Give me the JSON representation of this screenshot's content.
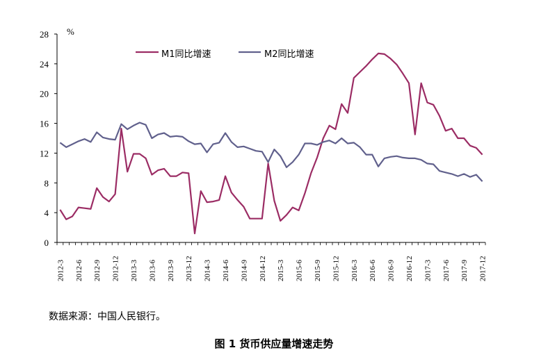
{
  "chart_data": {
    "type": "line",
    "unit_label": "%",
    "ylim": [
      0,
      28
    ],
    "yticks": [
      0,
      4,
      8,
      12,
      16,
      20,
      24,
      28
    ],
    "x": [
      "2012-3",
      "2012-4",
      "2012-5",
      "2012-6",
      "2012-7",
      "2012-8",
      "2012-9",
      "2012-10",
      "2012-11",
      "2012-12",
      "2013-1",
      "2013-2",
      "2013-3",
      "2013-4",
      "2013-5",
      "2013-6",
      "2013-7",
      "2013-8",
      "2013-9",
      "2013-10",
      "2013-11",
      "2013-12",
      "2014-1",
      "2014-2",
      "2014-3",
      "2014-4",
      "2014-5",
      "2014-6",
      "2014-7",
      "2014-8",
      "2014-9",
      "2014-10",
      "2014-11",
      "2014-12",
      "2015-1",
      "2015-2",
      "2015-3",
      "2015-4",
      "2015-5",
      "2015-6",
      "2015-7",
      "2015-8",
      "2015-9",
      "2015-10",
      "2015-11",
      "2015-12",
      "2016-1",
      "2016-2",
      "2016-3",
      "2016-4",
      "2016-5",
      "2016-6",
      "2016-7",
      "2016-8",
      "2016-9",
      "2016-10",
      "2016-11",
      "2016-12",
      "2017-1",
      "2017-2",
      "2017-3",
      "2017-4",
      "2017-5",
      "2017-6",
      "2017-7",
      "2017-8",
      "2017-9",
      "2017-10",
      "2017-11",
      "2017-12"
    ],
    "xtick_labels": [
      "2012-3",
      "2012-6",
      "2012-9",
      "2012-12",
      "2013-3",
      "2013-6",
      "2013-9",
      "2013-12",
      "2014-3",
      "2014-6",
      "2014-9",
      "2014-12",
      "2015-3",
      "2015-6",
      "2015-9",
      "2015-12",
      "2016-3",
      "2016-6",
      "2016-9",
      "2016-12",
      "2017-3",
      "2017-6",
      "2017-9",
      "2017-12"
    ],
    "series": [
      {
        "name": "M1同比增速",
        "color": "#9b2c64",
        "values": [
          4.4,
          3.1,
          3.5,
          4.7,
          4.6,
          4.5,
          7.3,
          6.1,
          5.5,
          6.5,
          15.3,
          9.5,
          11.9,
          11.9,
          11.3,
          9.1,
          9.7,
          9.9,
          8.9,
          8.9,
          9.4,
          9.3,
          1.2,
          6.9,
          5.4,
          5.5,
          5.7,
          8.9,
          6.7,
          5.7,
          4.8,
          3.2,
          3.2,
          3.2,
          10.6,
          5.6,
          2.9,
          3.7,
          4.7,
          4.3,
          6.6,
          9.3,
          11.4,
          14.0,
          15.7,
          15.2,
          18.6,
          17.4,
          22.1,
          22.9,
          23.7,
          24.6,
          25.4,
          25.3,
          24.7,
          23.9,
          22.7,
          21.4,
          14.5,
          21.4,
          18.8,
          18.5,
          17.0,
          15.0,
          15.3,
          14.0,
          14.0,
          13.0,
          12.7,
          11.8
        ]
      },
      {
        "name": "M2同比增速",
        "color": "#60608c",
        "values": [
          13.4,
          12.8,
          13.2,
          13.6,
          13.9,
          13.5,
          14.8,
          14.1,
          13.9,
          13.8,
          15.9,
          15.2,
          15.7,
          16.1,
          15.8,
          14.0,
          14.5,
          14.7,
          14.2,
          14.3,
          14.2,
          13.6,
          13.2,
          13.3,
          12.1,
          13.2,
          13.4,
          14.7,
          13.5,
          12.8,
          12.9,
          12.6,
          12.3,
          12.2,
          10.8,
          12.5,
          11.6,
          10.1,
          10.8,
          11.8,
          13.3,
          13.3,
          13.1,
          13.5,
          13.7,
          13.3,
          14.0,
          13.3,
          13.4,
          12.8,
          11.8,
          11.8,
          10.2,
          11.3,
          11.5,
          11.6,
          11.4,
          11.3,
          11.3,
          11.1,
          10.6,
          10.5,
          9.6,
          9.4,
          9.2,
          8.9,
          9.2,
          8.8,
          9.1,
          8.2
        ]
      }
    ]
  },
  "source_note": "数据来源：中国人民银行。",
  "caption": "图 1  货币供应量增速走势"
}
